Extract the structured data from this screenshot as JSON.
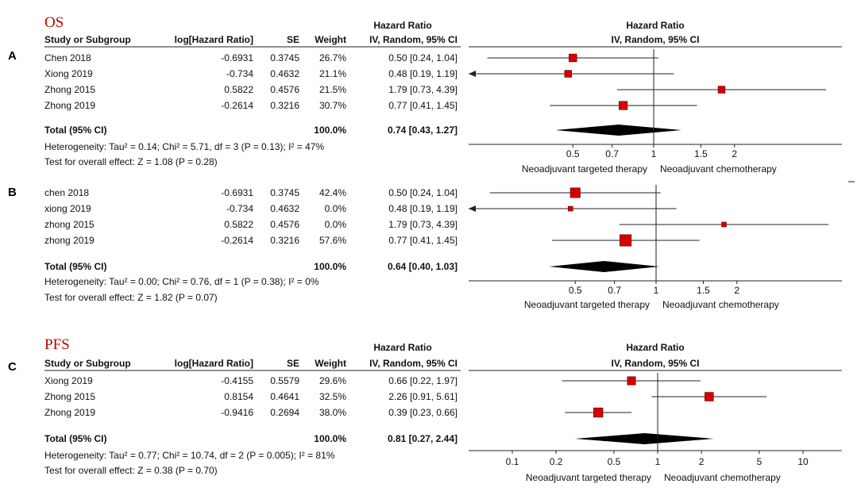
{
  "chart_data": [
    {
      "type": "forest",
      "panel": "A",
      "title": "OS",
      "header": {
        "study_col": "Study or Subgroup",
        "log_col": "log[Hazard Ratio]",
        "se_col": "SE",
        "weight_col": "Weight",
        "hr_top": "Hazard Ratio",
        "hr_sub": "IV, Random, 95% CI",
        "plot_top": "Hazard Ratio",
        "plot_sub": "IV, Random, 95% CI"
      },
      "studies": [
        {
          "name": "Chen 2018",
          "log_hr": "-0.6931",
          "se": "0.3745",
          "weight": "26.7%",
          "ci_text": "0.50 [0.24, 1.04]",
          "hr": 0.5,
          "lo": 0.24,
          "hi": 1.04,
          "w": 26.7
        },
        {
          "name": "Xiong 2019",
          "log_hr": "-0.734",
          "se": "0.4632",
          "weight": "21.1%",
          "ci_text": "0.48 [0.19, 1.19]",
          "hr": 0.48,
          "lo": 0.19,
          "hi": 1.19,
          "w": 21.1
        },
        {
          "name": "Zhong 2015",
          "log_hr": "0.5822",
          "se": "0.4576",
          "weight": "21.5%",
          "ci_text": "1.79 [0.73, 4.39]",
          "hr": 1.79,
          "lo": 0.73,
          "hi": 4.39,
          "w": 21.5
        },
        {
          "name": "Zhong 2019",
          "log_hr": "-0.2614",
          "se": "0.3216",
          "weight": "30.7%",
          "ci_text": "0.77 [0.41, 1.45]",
          "hr": 0.77,
          "lo": 0.41,
          "hi": 1.45,
          "w": 30.7
        }
      ],
      "total": {
        "label": "Total (95% CI)",
        "weight": "100.0%",
        "ci_text": "0.74 [0.43, 1.27]",
        "hr": 0.74,
        "lo": 0.43,
        "hi": 1.27
      },
      "heterogeneity": "Heterogeneity: Tau² = 0.14; Chi² = 5.71, df = 3 (P = 0.13); I² = 47%",
      "overall_effect": "Test for overall effect: Z = 1.08 (P = 0.28)",
      "ticks": [
        {
          "value": 0.5,
          "label": "0.5"
        },
        {
          "value": 0.7,
          "label": "0.7"
        },
        {
          "value": 1,
          "label": "1"
        },
        {
          "value": 1.5,
          "label": "1.5"
        },
        {
          "value": 2,
          "label": "2"
        }
      ],
      "left_label": "Neoadjuvant targeted therapy",
      "right_label": "Neoadjuvant chemotherapy",
      "box_color": "#d40000"
    },
    {
      "type": "forest",
      "panel": "B",
      "title": "",
      "header": null,
      "studies": [
        {
          "name": "chen 2018",
          "log_hr": "-0.6931",
          "se": "0.3745",
          "weight": "42.4%",
          "ci_text": "0.50 [0.24, 1.04]",
          "hr": 0.5,
          "lo": 0.24,
          "hi": 1.04,
          "w": 42.4
        },
        {
          "name": "xiong 2019",
          "log_hr": "-0.734",
          "se": "0.4632",
          "weight": "0.0%",
          "ci_text": "0.48 [0.19, 1.19]",
          "hr": 0.48,
          "lo": 0.19,
          "hi": 1.19,
          "w": 0
        },
        {
          "name": "zhong 2015",
          "log_hr": "0.5822",
          "se": "0.4576",
          "weight": "0.0%",
          "ci_text": "1.79 [0.73, 4.39]",
          "hr": 1.79,
          "lo": 0.73,
          "hi": 4.39,
          "w": 0
        },
        {
          "name": "zhong 2019",
          "log_hr": "-0.2614",
          "se": "0.3216",
          "weight": "57.6%",
          "ci_text": "0.77 [0.41, 1.45]",
          "hr": 0.77,
          "lo": 0.41,
          "hi": 1.45,
          "w": 57.6
        }
      ],
      "total": {
        "label": "Total (95% CI)",
        "weight": "100.0%",
        "ci_text": "0.64 [0.40, 1.03]",
        "hr": 0.64,
        "lo": 0.4,
        "hi": 1.03
      },
      "heterogeneity": "Heterogeneity: Tau² = 0.00; Chi² = 0.76, df = 1 (P = 0.38); I² = 0%",
      "overall_effect": "Test for overall effect: Z = 1.82 (P = 0.07)",
      "ticks": [
        {
          "value": 0.5,
          "label": "0.5"
        },
        {
          "value": 0.7,
          "label": "0.7"
        },
        {
          "value": 1,
          "label": "1"
        },
        {
          "value": 1.5,
          "label": "1.5"
        },
        {
          "value": 2,
          "label": "2"
        }
      ],
      "left_label": "Neoadjuvant targeted therapy",
      "right_label": "Neoadjuvant chemotherapy",
      "box_color": "#d40000"
    },
    {
      "type": "forest",
      "panel": "C",
      "title": "PFS",
      "header": {
        "study_col": "Study or Subgroup",
        "log_col": "log[Hazard Ratio]",
        "se_col": "SE",
        "weight_col": "Weight",
        "hr_top": "Hazard Ratio",
        "hr_sub": "IV, Random, 95% CI",
        "plot_top": "Hazard Ratio",
        "plot_sub": "IV, Random, 95% CI"
      },
      "studies": [
        {
          "name": "Xiong 2019",
          "log_hr": "-0.4155",
          "se": "0.5579",
          "weight": "29.6%",
          "ci_text": "0.66 [0.22, 1.97]",
          "hr": 0.66,
          "lo": 0.22,
          "hi": 1.97,
          "w": 29.6
        },
        {
          "name": "Zhong 2015",
          "log_hr": "0.8154",
          "se": "0.4641",
          "weight": "32.5%",
          "ci_text": "2.26 [0.91, 5.61]",
          "hr": 2.26,
          "lo": 0.91,
          "hi": 5.61,
          "w": 32.5
        },
        {
          "name": "Zhong 2019",
          "log_hr": "-0.9416",
          "se": "0.2694",
          "weight": "38.0%",
          "ci_text": "0.39 [0.23, 0.66]",
          "hr": 0.39,
          "lo": 0.23,
          "hi": 0.66,
          "w": 38.0
        }
      ],
      "total": {
        "label": "Total (95% CI)",
        "weight": "100.0%",
        "ci_text": "0.81 [0.27, 2.44]",
        "hr": 0.81,
        "lo": 0.27,
        "hi": 2.44
      },
      "heterogeneity": "Heterogeneity: Tau² = 0.77; Chi² = 10.74, df = 2 (P = 0.005); I² = 81%",
      "overall_effect": "Test for overall effect: Z = 0.38 (P = 0.70)",
      "ticks": [
        {
          "value": 0.1,
          "label": "0.1"
        },
        {
          "value": 0.2,
          "label": "0.2"
        },
        {
          "value": 0.5,
          "label": "0.5"
        },
        {
          "value": 1,
          "label": "1"
        },
        {
          "value": 2,
          "label": "2"
        },
        {
          "value": 5,
          "label": "5"
        },
        {
          "value": 10,
          "label": "10"
        }
      ],
      "left_label": "Neoadjuvant targeted therapy",
      "right_label": "Neoadjuvant chemotherapy",
      "box_color": "#d40000"
    }
  ]
}
